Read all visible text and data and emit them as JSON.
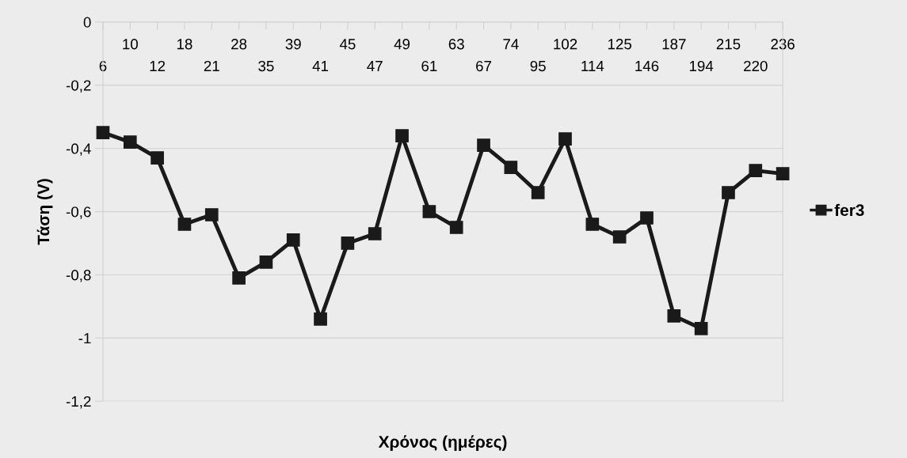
{
  "chart_data": {
    "type": "line",
    "xlabel": "Χρόνος (ημέρες)",
    "ylabel": "Τάση (V)",
    "categories": [
      "6",
      "10",
      "12",
      "18",
      "21",
      "28",
      "35",
      "39",
      "41",
      "45",
      "47",
      "49",
      "61",
      "63",
      "67",
      "74",
      "95",
      "102",
      "114",
      "125",
      "146",
      "187",
      "194",
      "215",
      "220",
      "236"
    ],
    "series": [
      {
        "name": "fer3",
        "color": "#1a1a1a",
        "values": [
          -0.35,
          -0.38,
          -0.43,
          -0.64,
          -0.61,
          -0.81,
          -0.76,
          -0.69,
          -0.94,
          -0.7,
          -0.67,
          -0.36,
          -0.6,
          -0.65,
          -0.39,
          -0.46,
          -0.54,
          -0.37,
          -0.64,
          -0.68,
          -0.62,
          -0.93,
          -0.97,
          -0.54,
          -0.47,
          -0.48
        ]
      }
    ],
    "ylim": [
      -1.2,
      0
    ],
    "yticks": [
      {
        "value": -1.2,
        "label": "-1,2"
      },
      {
        "value": -1,
        "label": "-1"
      },
      {
        "value": -0.8,
        "label": "-0,8"
      },
      {
        "value": -0.6,
        "label": "-0,6"
      },
      {
        "value": -0.4,
        "label": "-0,4"
      },
      {
        "value": -0.2,
        "label": "-0,2"
      },
      {
        "value": 0,
        "label": "0"
      }
    ],
    "grid": "y",
    "legend": "right",
    "marker": "square",
    "line_style": "solid"
  }
}
